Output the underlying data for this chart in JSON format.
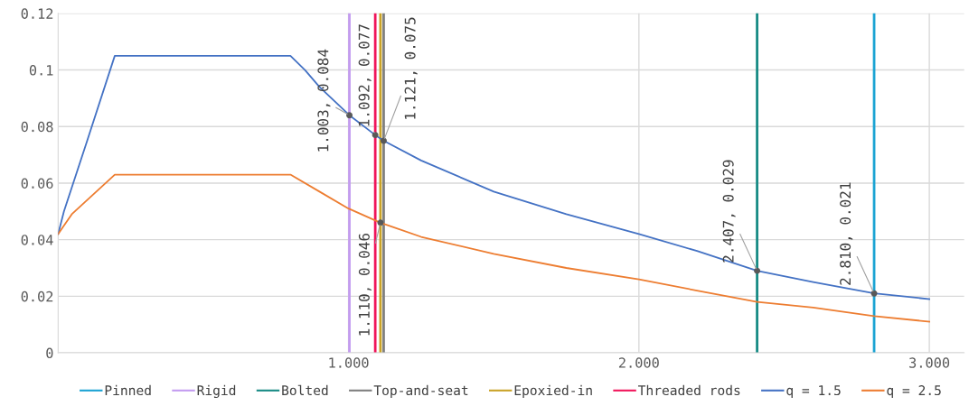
{
  "chart_data": {
    "type": "line",
    "xlim": [
      0,
      3.12
    ],
    "ylim": [
      0,
      0.12
    ],
    "xticks": [
      {
        "value": 1,
        "label": "1.000"
      },
      {
        "value": 2,
        "label": "2.000"
      },
      {
        "value": 3,
        "label": "3.000"
      }
    ],
    "yticks": [
      0,
      0.02,
      0.04,
      0.06,
      0.08,
      0.1,
      0.12
    ],
    "grid": true,
    "legend": "bottom",
    "marker": "none",
    "line_style": "solid",
    "ref_lines": [
      {
        "axis": "x",
        "value": 2.81,
        "label": "Pinned",
        "color": "#1aa3d3"
      },
      {
        "axis": "x",
        "value": 1.003,
        "label": "Rigid",
        "color": "#c39bf0"
      },
      {
        "axis": "x",
        "value": 2.407,
        "label": "Bolted",
        "color": "#168a84"
      },
      {
        "axis": "x",
        "value": 1.121,
        "label": "Top-and-seat",
        "color": "#7f7f7f"
      },
      {
        "axis": "x",
        "value": 1.11,
        "label": "Epoxied-in",
        "color": "#c9a227"
      },
      {
        "axis": "x",
        "value": 1.092,
        "label": "Threaded rods",
        "color": "#f0145a"
      }
    ],
    "series": [
      {
        "name": "q = 1.5",
        "color": "#4472c4",
        "x": [
          0,
          0.02,
          0.1,
          0.195,
          0.8,
          0.85,
          0.9,
          1.003,
          1.092,
          1.121,
          1.25,
          1.5,
          1.75,
          2.0,
          2.2,
          2.407,
          2.6,
          2.81,
          3.0
        ],
        "values": [
          0.042,
          0.05,
          0.075,
          0.105,
          0.105,
          0.1,
          0.094,
          0.084,
          0.077,
          0.075,
          0.068,
          0.057,
          0.049,
          0.042,
          0.036,
          0.029,
          0.025,
          0.021,
          0.019
        ]
      },
      {
        "name": "q = 2.5",
        "color": "#ed7d31",
        "x": [
          0,
          0.047,
          0.195,
          0.8,
          0.9,
          1.0,
          1.11,
          1.25,
          1.5,
          1.75,
          2.0,
          2.2,
          2.407,
          2.6,
          2.81,
          3.0
        ],
        "values": [
          0.042,
          0.049,
          0.063,
          0.063,
          0.057,
          0.051,
          0.046,
          0.041,
          0.035,
          0.03,
          0.026,
          0.022,
          0.018,
          0.016,
          0.013,
          0.011
        ]
      }
    ],
    "annotations": [
      {
        "text": "1.003, 0.084",
        "x": 1.003,
        "y": 0.084
      },
      {
        "text": "1.092, 0.077",
        "x": 1.092,
        "y": 0.077
      },
      {
        "text": "1.121, 0.075",
        "x": 1.121,
        "y": 0.075
      },
      {
        "text": "1.110, 0.046",
        "x": 1.11,
        "y": 0.046
      },
      {
        "text": "2.407, 0.029",
        "x": 2.407,
        "y": 0.029
      },
      {
        "text": "2.810, 0.021",
        "x": 2.81,
        "y": 0.021
      }
    ]
  }
}
